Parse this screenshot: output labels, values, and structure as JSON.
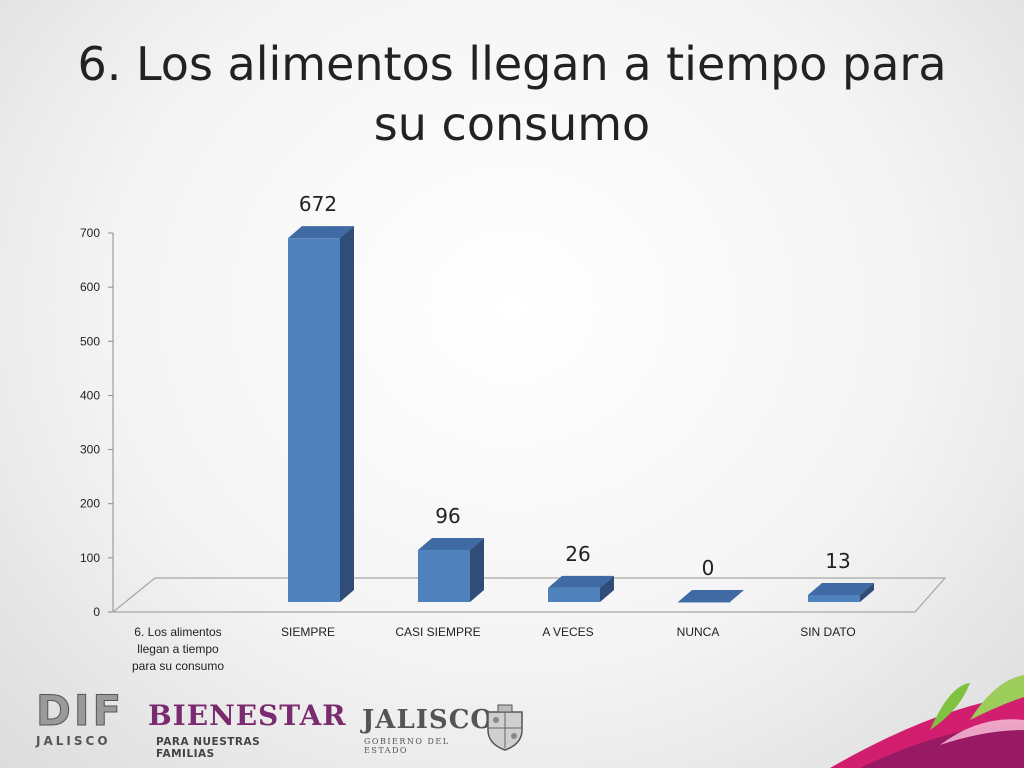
{
  "slide": {
    "title": "6. Los alimentos llegan a tiempo para su consumo"
  },
  "chart_data": {
    "type": "bar",
    "style": "3d-column",
    "categories": [
      "6. Los alimentos llegan a tiempo para su consumo",
      "SIEMPRE",
      "CASI SIEMPRE",
      "A VECES",
      "NUNCA",
      "SIN DATO"
    ],
    "values": [
      null,
      672,
      96,
      26,
      0,
      13
    ],
    "data_labels": [
      "",
      "672",
      "96",
      "26",
      "0",
      "13"
    ],
    "ylim": [
      0,
      700
    ],
    "yticks": [
      0,
      100,
      200,
      300,
      400,
      500,
      600,
      700
    ],
    "grid": false,
    "colors": {
      "bar_front": "#4f81bd",
      "bar_top": "#3f6aa3",
      "bar_side": "#2f4d77",
      "floor": "#a6a6a6"
    }
  },
  "logos": {
    "dif": {
      "main": "DIF",
      "sub": "JALISCO"
    },
    "bienestar": {
      "main": "BIENESTAR",
      "sub": "PARA NUESTRAS FAMILIAS"
    },
    "jalisco": {
      "main": "JALISCO",
      "sub": "GOBIERNO DEL ESTADO"
    }
  }
}
